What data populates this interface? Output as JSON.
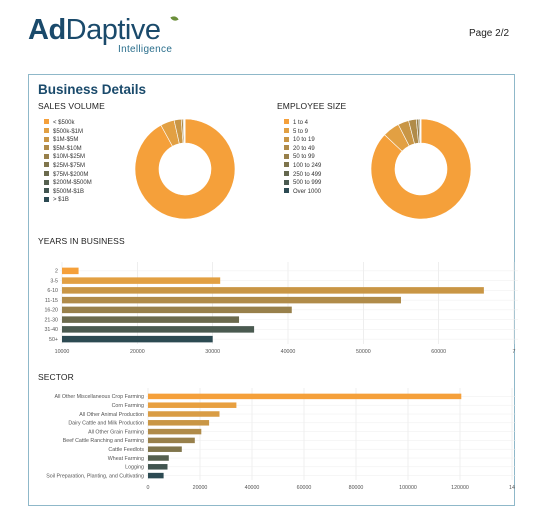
{
  "header": {
    "logo_ad": "Ad",
    "logo_daptive": "Daptive",
    "logo_sub": "Intelligence",
    "page": "Page 2/2"
  },
  "colors": {
    "orange": "#f5a03a",
    "border": "#8fb8c9",
    "title": "#1a4a6b"
  },
  "card": {
    "title": "Business Details",
    "sales_title": "SALES VOLUME",
    "employee_title": "EMPLOYEE SIZE",
    "years_title": "YEARS IN BUSINESS",
    "sector_title": "SECTOR"
  },
  "chart_data": [
    {
      "type": "pie",
      "title": "SALES VOLUME",
      "donut": true,
      "legend_position": "left",
      "labels": [
        "< $500k",
        "$500k-$1M",
        "$1M-$5M",
        "$5M-$10M",
        "$10M-$25M",
        "$25M-$75M",
        "$75M-$200M",
        "$200M-$500M",
        "$500M-$1B",
        "> $1B"
      ],
      "colors": [
        "#f5a03a",
        "#e2a043",
        "#c99645",
        "#b08b49",
        "#98804b",
        "#80754c",
        "#6b6a4d",
        "#55604f",
        "#415550",
        "#2c4a52"
      ],
      "values": [
        92,
        4.5,
        2.3,
        0.6,
        0.3,
        0.15,
        0.08,
        0.04,
        0.02,
        0.01
      ]
    },
    {
      "type": "pie",
      "title": "EMPLOYEE SIZE",
      "donut": true,
      "legend_position": "left",
      "labels": [
        "1 to 4",
        "5 to 9",
        "10 to 19",
        "20 to 49",
        "50 to 99",
        "100 to 249",
        "250 to 499",
        "500 to 999",
        "Over 1000"
      ],
      "colors": [
        "#f5a03a",
        "#e2a043",
        "#c99645",
        "#b08b49",
        "#98804b",
        "#7e744c",
        "#64674e",
        "#4a5a50",
        "#2c4a52"
      ],
      "values": [
        87,
        5.5,
        3.5,
        2.5,
        0.8,
        0.4,
        0.15,
        0.1,
        0.05
      ]
    },
    {
      "type": "bar",
      "orientation": "horizontal",
      "title": "YEARS IN BUSINESS",
      "categories": [
        "2",
        "3-5",
        "6-10",
        "11-15",
        "16-20",
        "21-30",
        "31-40",
        "50+"
      ],
      "values": [
        12200,
        31000,
        66000,
        55000,
        40500,
        33500,
        35500,
        30000
      ],
      "colors": [
        "#f5a03a",
        "#e2a043",
        "#c99645",
        "#b08b49",
        "#98804b",
        "#6b6a4d",
        "#4a5a50",
        "#2c4a52"
      ],
      "xlim": [
        10000,
        70000
      ],
      "xticks": [
        "10000",
        "20000",
        "30000",
        "40000",
        "50000",
        "60000",
        "7"
      ],
      "grid": true
    },
    {
      "type": "bar",
      "orientation": "horizontal",
      "title": "SECTOR",
      "categories": [
        "All Other Miscellaneous Crop Farming",
        "Corn Farming",
        "All Other Animal Production",
        "Dairy Cattle and Milk Production",
        "All Other Grain Farming",
        "Beef Cattle Ranching and Farming",
        "Cattle Feedlots",
        "Wheat Farming",
        "Logging",
        "Soil Preparation, Planting, and Cultivating"
      ],
      "values": [
        120500,
        34000,
        27500,
        23500,
        20500,
        18000,
        13000,
        8000,
        7500,
        6000
      ],
      "colors": [
        "#f5a03a",
        "#e8a040",
        "#d99c44",
        "#c99645",
        "#b08b49",
        "#98804b",
        "#80754c",
        "#55604f",
        "#415550",
        "#2c4a52"
      ],
      "xlim": [
        0,
        140000
      ],
      "xticks": [
        "0",
        "20000",
        "40000",
        "60000",
        "80000",
        "100000",
        "120000",
        "14"
      ],
      "grid": true
    }
  ]
}
